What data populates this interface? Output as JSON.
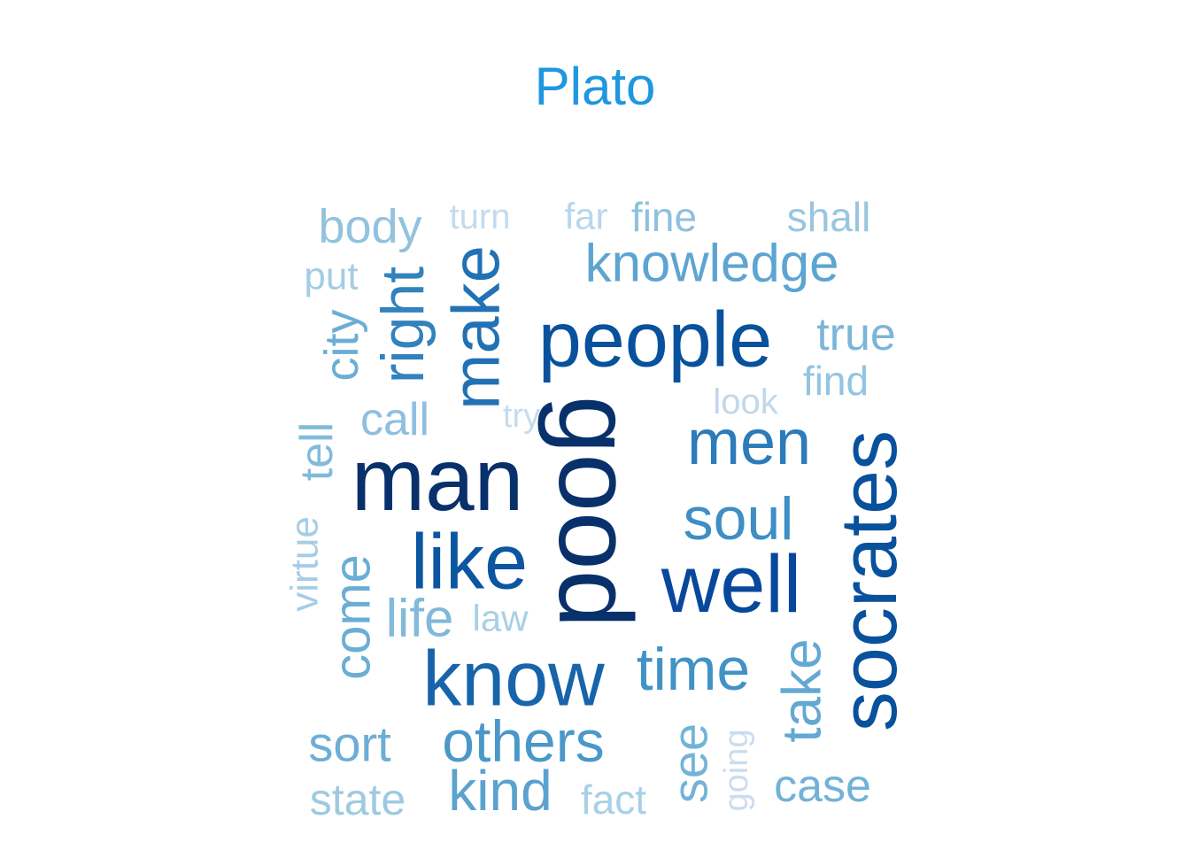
{
  "chart_data": {
    "type": "wordcloud",
    "title": "Plato",
    "title_color": "#1f97e0",
    "color_scale": "Blues",
    "words": [
      {
        "text": "good",
        "weight": 100,
        "color": "#08306b"
      },
      {
        "text": "man",
        "weight": 92,
        "color": "#08306b"
      },
      {
        "text": "well",
        "weight": 83,
        "color": "#08489c"
      },
      {
        "text": "socrates",
        "weight": 80,
        "color": "#08519c"
      },
      {
        "text": "people",
        "weight": 78,
        "color": "#08519c"
      },
      {
        "text": "like",
        "weight": 75,
        "color": "#0b55a1"
      },
      {
        "text": "know",
        "weight": 70,
        "color": "#1764ab"
      },
      {
        "text": "make",
        "weight": 64,
        "color": "#2171b5"
      },
      {
        "text": "men",
        "weight": 62,
        "color": "#2c7bba"
      },
      {
        "text": "right",
        "weight": 58,
        "color": "#3182bd"
      },
      {
        "text": "soul",
        "weight": 56,
        "color": "#3f8ec5"
      },
      {
        "text": "time",
        "weight": 55,
        "color": "#4292c6"
      },
      {
        "text": "others",
        "weight": 54,
        "color": "#4a98c9"
      },
      {
        "text": "kind",
        "weight": 52,
        "color": "#5aa2cf"
      },
      {
        "text": "knowledge",
        "weight": 51,
        "color": "#5da5d1"
      },
      {
        "text": "take",
        "weight": 49,
        "color": "#63a8d3"
      },
      {
        "text": "come",
        "weight": 48,
        "color": "#6aaed6"
      },
      {
        "text": "sort",
        "weight": 46,
        "color": "#6daed5"
      },
      {
        "text": "city",
        "weight": 45,
        "color": "#6aaed6"
      },
      {
        "text": "case",
        "weight": 44,
        "color": "#72b2d8"
      },
      {
        "text": "see",
        "weight": 43,
        "color": "#74b3d8"
      },
      {
        "text": "true",
        "weight": 42,
        "color": "#7bb6d9"
      },
      {
        "text": "life",
        "weight": 41,
        "color": "#80b9da"
      },
      {
        "text": "tell",
        "weight": 40,
        "color": "#82badb"
      },
      {
        "text": "call",
        "weight": 39,
        "color": "#8ebfe0"
      },
      {
        "text": "body",
        "weight": 38,
        "color": "#92c2de"
      },
      {
        "text": "state",
        "weight": 37,
        "color": "#9ecae1"
      },
      {
        "text": "fine",
        "weight": 36,
        "color": "#8fc1de"
      },
      {
        "text": "find",
        "weight": 35,
        "color": "#93c4e1"
      },
      {
        "text": "shall",
        "weight": 34,
        "color": "#98c6df"
      },
      {
        "text": "virtue",
        "weight": 33,
        "color": "#a6cde5"
      },
      {
        "text": "put",
        "weight": 32,
        "color": "#a3cde4"
      },
      {
        "text": "fact",
        "weight": 31,
        "color": "#a8d0e6"
      },
      {
        "text": "law",
        "weight": 30,
        "color": "#a8d0e6"
      },
      {
        "text": "far",
        "weight": 29,
        "color": "#b8d6ec"
      },
      {
        "text": "look",
        "weight": 28,
        "color": "#c0d8ec"
      },
      {
        "text": "turn",
        "weight": 27,
        "color": "#c2dbee"
      },
      {
        "text": "try",
        "weight": 26,
        "color": "#c6dbef"
      },
      {
        "text": "going",
        "weight": 25,
        "color": "#cadcef"
      }
    ]
  }
}
